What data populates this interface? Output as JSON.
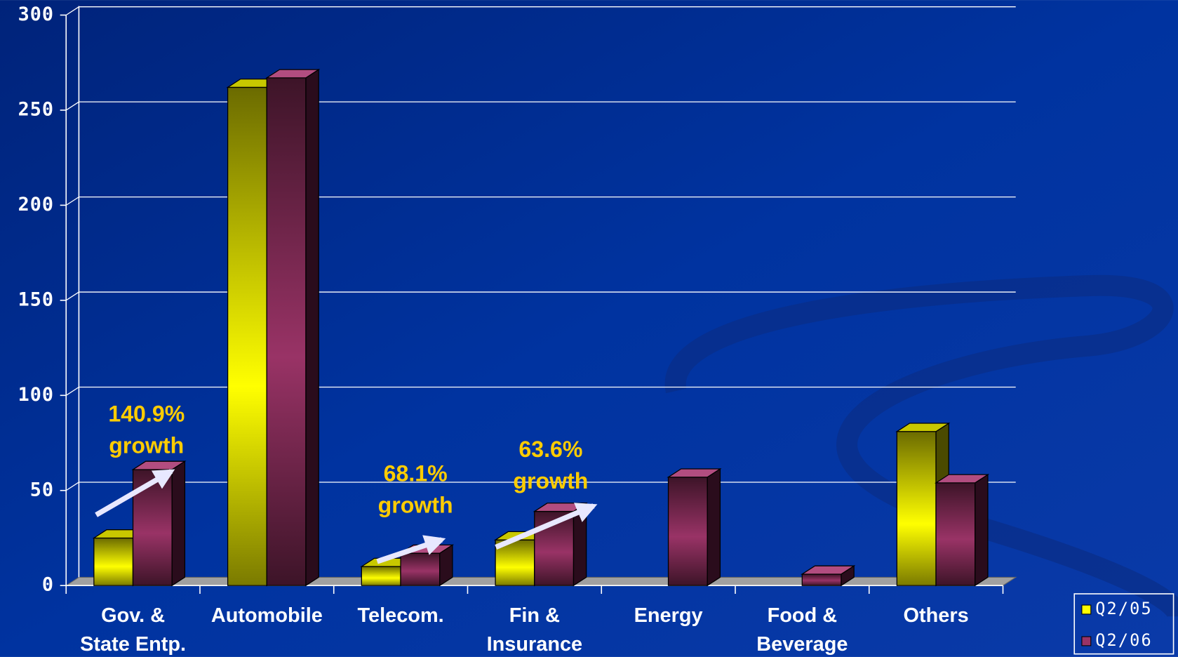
{
  "chart_data": {
    "type": "bar3d",
    "categories": [
      "Gov. &\nState Entp.",
      "Automobile",
      "Telecom.",
      "Fin &\nInsurance",
      "Energy",
      "Food &\nBeverage",
      "Others"
    ],
    "series": [
      {
        "name": "Q2/05",
        "color": "#ffff00",
        "values": [
          25,
          262,
          10,
          24,
          0,
          0,
          81
        ]
      },
      {
        "name": "Q2/06",
        "color": "#993366",
        "values": [
          61,
          267,
          17,
          39,
          57,
          6,
          54
        ]
      }
    ],
    "ylim": [
      0,
      300
    ],
    "yticks": [
      0,
      50,
      100,
      150,
      200,
      250,
      300
    ],
    "grid": true,
    "legend": "bottom-right",
    "annotations": [
      [
        "140.9%",
        "growth"
      ],
      [
        "68.1%",
        "growth"
      ],
      [
        "63.6%",
        "growth"
      ]
    ]
  }
}
